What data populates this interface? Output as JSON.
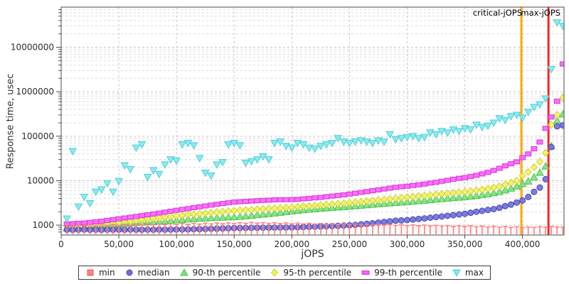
{
  "chart_data": {
    "type": "scatter",
    "title": "",
    "xlabel": "jOPS",
    "ylabel": "Response time, usec",
    "grid": true,
    "legend_position": "bottom",
    "x_axis": {
      "min": 0,
      "max": 436000,
      "tick_values": [
        0,
        50000,
        100000,
        150000,
        200000,
        250000,
        300000,
        350000,
        400000
      ],
      "tick_labels": [
        "0",
        "50,000",
        "100,000",
        "150,000",
        "200,000",
        "250,000",
        "300,000",
        "350,000",
        "400,000"
      ]
    },
    "y_axis": {
      "scale": "log",
      "min": 600,
      "max": 80000000,
      "tick_values": [
        1000,
        10000,
        100000,
        1000000,
        10000000
      ],
      "tick_labels": [
        "1000",
        "10000",
        "100000",
        "1000000",
        "10000000"
      ]
    },
    "x": [
      5000,
      10000,
      15000,
      20000,
      25000,
      30000,
      35000,
      40000,
      45000,
      50000,
      55000,
      60000,
      65000,
      70000,
      75000,
      80000,
      85000,
      90000,
      95000,
      100000,
      105000,
      110000,
      115000,
      120000,
      125000,
      130000,
      135000,
      140000,
      145000,
      150000,
      155000,
      160000,
      165000,
      170000,
      175000,
      180000,
      185000,
      190000,
      195000,
      200000,
      205000,
      210000,
      215000,
      220000,
      225000,
      230000,
      235000,
      240000,
      245000,
      250000,
      255000,
      260000,
      265000,
      270000,
      275000,
      280000,
      285000,
      290000,
      295000,
      300000,
      305000,
      310000,
      315000,
      320000,
      325000,
      330000,
      335000,
      340000,
      345000,
      350000,
      355000,
      360000,
      365000,
      370000,
      375000,
      380000,
      385000,
      390000,
      395000,
      400000,
      405000,
      410000,
      415000,
      420000,
      425000,
      430000,
      435000
    ],
    "series": [
      {
        "name": "min",
        "marker": "tee",
        "legend_marker": "square",
        "color": "#ff8080",
        "edge": "#e25d5d",
        "values": [
          990,
          950,
          1000,
          960,
          1010,
          970,
          1020,
          980,
          1030,
          990,
          1040,
          1000,
          1050,
          1010,
          1060,
          1020,
          1070,
          1030,
          1080,
          1040,
          1090,
          1050,
          1100,
          1060,
          1110,
          1070,
          1120,
          1080,
          1130,
          1090,
          1140,
          1100,
          1150,
          1110,
          1140,
          1100,
          1130,
          1090,
          1120,
          1080,
          1110,
          1070,
          1100,
          1060,
          1090,
          1050,
          1080,
          1040,
          1070,
          1030,
          1060,
          1020,
          1050,
          1010,
          1040,
          1000,
          1030,
          990,
          1020,
          980,
          1010,
          970,
          1000,
          960,
          990,
          950,
          980,
          940,
          970,
          930,
          960,
          920,
          950,
          910,
          940,
          900,
          930,
          890,
          920,
          880,
          910,
          890,
          920,
          900,
          930,
          910,
          900
        ]
      },
      {
        "name": "median",
        "marker": "circle",
        "legend_marker": "circle",
        "color": "#6e6ed8",
        "edge": "#4848b6",
        "values": [
          790,
          785,
          790,
          795,
          788,
          792,
          786,
          791,
          789,
          793,
          787,
          794,
          790,
          788,
          792,
          790,
          795,
          793,
          796,
          798,
          800,
          805,
          810,
          815,
          820,
          828,
          835,
          842,
          850,
          858,
          862,
          866,
          870,
          874,
          878,
          880,
          882,
          884,
          886,
          888,
          895,
          905,
          915,
          925,
          935,
          945,
          955,
          965,
          978,
          990,
          1010,
          1040,
          1070,
          1100,
          1140,
          1180,
          1220,
          1260,
          1280,
          1300,
          1340,
          1380,
          1420,
          1470,
          1520,
          1570,
          1620,
          1680,
          1740,
          1800,
          1900,
          2000,
          2100,
          2200,
          2300,
          2450,
          2680,
          2900,
          3230,
          3600,
          4300,
          5600,
          7000,
          10800,
          57000,
          167000,
          175000
        ]
      },
      {
        "name": "90-th percentile",
        "marker": "triangle-up",
        "legend_marker": "triangle-up",
        "color": "#7ce27c",
        "edge": "#4fc44f",
        "values": [
          860,
          880,
          895,
          910,
          930,
          950,
          975,
          1000,
          1030,
          1060,
          1090,
          1110,
          1130,
          1150,
          1170,
          1190,
          1210,
          1240,
          1270,
          1300,
          1330,
          1360,
          1390,
          1410,
          1430,
          1450,
          1470,
          1490,
          1510,
          1530,
          1560,
          1600,
          1650,
          1700,
          1750,
          1800,
          1860,
          1920,
          1990,
          2070,
          2130,
          2190,
          2250,
          2310,
          2370,
          2430,
          2480,
          2530,
          2580,
          2630,
          2700,
          2770,
          2840,
          2910,
          2980,
          3050,
          3120,
          3190,
          3260,
          3330,
          3420,
          3510,
          3600,
          3700,
          3800,
          3900,
          4000,
          4100,
          4200,
          4300,
          4450,
          4600,
          4800,
          5000,
          5300,
          5600,
          6100,
          6700,
          7400,
          8500,
          9700,
          12000,
          15200,
          21000,
          60000,
          225000,
          310000
        ]
      },
      {
        "name": "95-th percentile",
        "marker": "diamond",
        "legend_marker": "diamond",
        "color": "#f2f25e",
        "edge": "#cfcf3a",
        "values": [
          950,
          965,
          980,
          995,
          1010,
          1030,
          1055,
          1080,
          1110,
          1140,
          1180,
          1220,
          1260,
          1300,
          1340,
          1390,
          1440,
          1490,
          1550,
          1610,
          1660,
          1710,
          1760,
          1810,
          1860,
          1910,
          1960,
          2010,
          2060,
          2110,
          2150,
          2190,
          2230,
          2270,
          2310,
          2350,
          2390,
          2430,
          2470,
          2510,
          2570,
          2630,
          2690,
          2750,
          2820,
          2890,
          2960,
          3030,
          3100,
          3170,
          3260,
          3350,
          3450,
          3550,
          3650,
          3760,
          3870,
          3990,
          4110,
          4230,
          4360,
          4490,
          4620,
          4760,
          4900,
          5040,
          5180,
          5320,
          5460,
          5600,
          5800,
          6050,
          6300,
          6600,
          6950,
          7400,
          8100,
          9000,
          10000,
          13000,
          15800,
          20000,
          27000,
          42000,
          180000,
          300000,
          735000
        ]
      },
      {
        "name": "99-th percentile",
        "marker": "rect",
        "legend_marker": "rect",
        "color": "#fa5ffa",
        "edge": "#d438d4",
        "values": [
          1060,
          1080,
          1100,
          1120,
          1150,
          1190,
          1230,
          1280,
          1330,
          1390,
          1450,
          1510,
          1570,
          1640,
          1710,
          1790,
          1870,
          1960,
          2060,
          2160,
          2260,
          2360,
          2470,
          2580,
          2700,
          2820,
          2940,
          3060,
          3180,
          3300,
          3360,
          3420,
          3480,
          3540,
          3600,
          3650,
          3700,
          3730,
          3740,
          3750,
          3800,
          3900,
          4000,
          4100,
          4200,
          4350,
          4500,
          4650,
          4800,
          5000,
          5200,
          5450,
          5700,
          5950,
          6200,
          6500,
          6800,
          7100,
          7300,
          7500,
          7800,
          8100,
          8400,
          8800,
          9200,
          9700,
          10200,
          10800,
          11300,
          11700,
          12400,
          13200,
          14200,
          15400,
          17000,
          19000,
          21500,
          24000,
          26500,
          33000,
          40000,
          52000,
          74000,
          150000,
          270000,
          610000,
          4200000
        ]
      },
      {
        "name": "max",
        "marker": "triangle-down",
        "legend_marker": "triangle-down",
        "color": "#7fe9ee",
        "edge": "#4fcfd6",
        "values": [
          1400,
          46000,
          2600,
          4300,
          3100,
          5600,
          6300,
          8700,
          5600,
          9700,
          22000,
          18000,
          55000,
          65000,
          12000,
          17000,
          14000,
          23000,
          30000,
          28000,
          65000,
          70000,
          62000,
          32000,
          15000,
          13000,
          23000,
          26000,
          65000,
          70000,
          62000,
          25000,
          27000,
          30000,
          35000,
          30000,
          70000,
          75000,
          60000,
          55000,
          70000,
          65000,
          55000,
          52000,
          60000,
          65000,
          70000,
          90000,
          75000,
          70000,
          75000,
          80000,
          75000,
          70000,
          80000,
          75000,
          110000,
          85000,
          90000,
          95000,
          100000,
          90000,
          95000,
          120000,
          110000,
          130000,
          120000,
          140000,
          130000,
          150000,
          140000,
          180000,
          160000,
          170000,
          200000,
          250000,
          230000,
          280000,
          300000,
          260000,
          350000,
          450000,
          520000,
          700000,
          3200000,
          36000000,
          30000000
        ]
      }
    ],
    "annotations": [
      {
        "label": "critical-jOPS",
        "x": 399000,
        "color": "#ffaa00"
      },
      {
        "label": "max-jOPS",
        "x": 422500,
        "color": "#ff2222"
      }
    ]
  }
}
